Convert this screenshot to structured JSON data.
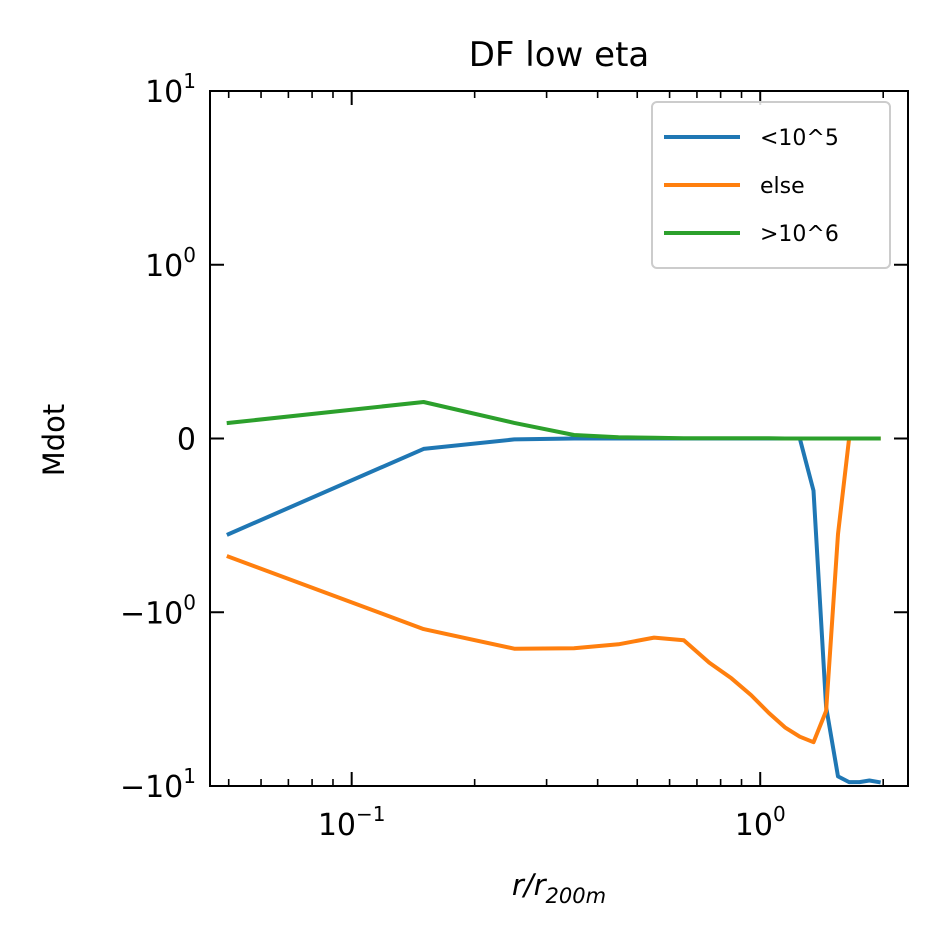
{
  "chart_data": {
    "type": "line",
    "title": "DF low eta",
    "xlabel": {
      "base": "r/r",
      "sub": "200m"
    },
    "ylabel": "Mdot",
    "x_scale": "log",
    "y_scale": "symlog",
    "xlim": [
      0.045,
      2.3
    ],
    "ylim": [
      -10,
      10
    ],
    "grid": false,
    "legend_position": "upper right",
    "x_ticks": [
      {
        "value": 0.1,
        "base": "10",
        "exp": "−1"
      },
      {
        "value": 1,
        "base": "10",
        "exp": "0"
      }
    ],
    "y_ticks": [
      {
        "value": 10,
        "sign": "",
        "base": "10",
        "exp": "1"
      },
      {
        "value": 1,
        "sign": "",
        "base": "10",
        "exp": "0"
      },
      {
        "value": 0,
        "text": "0"
      },
      {
        "value": -1,
        "sign": "−",
        "base": "10",
        "exp": "0"
      },
      {
        "value": -10,
        "sign": "−",
        "base": "10",
        "exp": "1"
      }
    ],
    "x": [
      0.05,
      0.15,
      0.25,
      0.35,
      0.45,
      0.55,
      0.65,
      0.75,
      0.85,
      0.95,
      1.05,
      1.15,
      1.25,
      1.35,
      1.45,
      1.55,
      1.65,
      1.75,
      1.85,
      1.95
    ],
    "series": [
      {
        "name": "<10^5",
        "color": "#1f77b4",
        "values": [
          -0.55,
          -0.06,
          -0.005,
          0.0,
          0.0,
          0.0,
          0.0,
          0.0,
          0.0,
          0.0,
          0.0,
          0.0,
          0.0,
          -0.3,
          -3.5,
          -8.8,
          -9.5,
          -9.5,
          -9.3,
          -9.5
        ]
      },
      {
        "name": "else",
        "color": "#ff7f0e",
        "values": [
          -0.68,
          -1.25,
          -1.62,
          -1.61,
          -1.53,
          -1.4,
          -1.45,
          -1.95,
          -2.4,
          -3.0,
          -3.8,
          -4.6,
          -5.2,
          -5.6,
          -3.7,
          -0.55,
          0.0,
          0.0,
          0.0,
          0.0
        ]
      },
      {
        "name": ">10^6",
        "color": "#2ca02c",
        "values": [
          0.09,
          0.21,
          0.09,
          0.02,
          0.007,
          0.004,
          0.002,
          0.001,
          0.001,
          0.001,
          0.001,
          0.0,
          0.0,
          0.0,
          0.0,
          0.0,
          0.0,
          0.0,
          0.0,
          0.0
        ]
      }
    ]
  }
}
